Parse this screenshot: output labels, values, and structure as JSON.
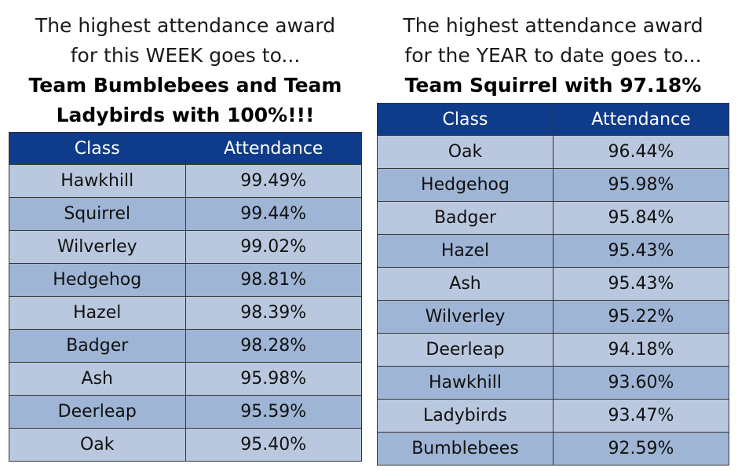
{
  "week": {
    "heading_line1": "The highest attendance award",
    "heading_line2": "for this WEEK goes to...",
    "award_line1": "Team Bumblebees and Team",
    "award_line2": "Ladybirds with 100%!!!",
    "columns": [
      "Class",
      "Attendance"
    ],
    "rows": [
      {
        "class": "Hawkhill",
        "attendance": "99.49%"
      },
      {
        "class": "Squirrel",
        "attendance": "99.44%"
      },
      {
        "class": "Wilverley",
        "attendance": "99.02%"
      },
      {
        "class": "Hedgehog",
        "attendance": "98.81%"
      },
      {
        "class": "Hazel",
        "attendance": "98.39%"
      },
      {
        "class": "Badger",
        "attendance": "98.28%"
      },
      {
        "class": "Ash",
        "attendance": "95.98%"
      },
      {
        "class": "Deerleap",
        "attendance": "95.59%"
      },
      {
        "class": "Oak",
        "attendance": "95.40%"
      }
    ]
  },
  "year": {
    "heading_line1": "The highest attendance award",
    "heading_line2": "for the YEAR to date goes to...",
    "award_line1": "Team Squirrel with 97.18%",
    "columns": [
      "Class",
      "Attendance"
    ],
    "rows": [
      {
        "class": "Oak",
        "attendance": "96.44%"
      },
      {
        "class": "Hedgehog",
        "attendance": "95.98%"
      },
      {
        "class": "Badger",
        "attendance": "95.84%"
      },
      {
        "class": "Hazel",
        "attendance": "95.43%"
      },
      {
        "class": "Ash",
        "attendance": "95.43%"
      },
      {
        "class": "Wilverley",
        "attendance": "95.22%"
      },
      {
        "class": "Deerleap",
        "attendance": "94.18%"
      },
      {
        "class": "Hawkhill",
        "attendance": "93.60%"
      },
      {
        "class": "Ladybirds",
        "attendance": "93.47%"
      },
      {
        "class": "Bumblebees",
        "attendance": "92.59%"
      }
    ]
  },
  "colors": {
    "header_bg": "#0f3c8a",
    "row_light": "#b9c8de",
    "row_dark": "#9fb5d5"
  }
}
